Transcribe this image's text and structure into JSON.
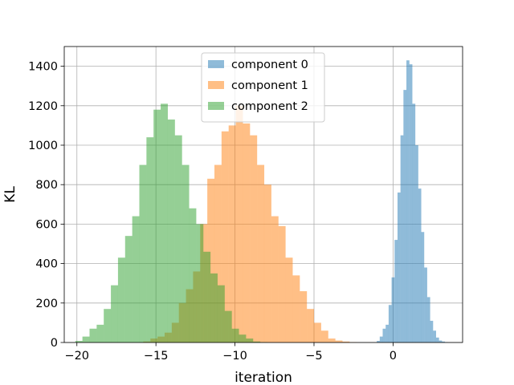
{
  "chart_data": {
    "type": "bar",
    "subtype": "histogram",
    "title": "",
    "xlabel": "iteration",
    "ylabel": "KL",
    "xlim": [
      -20.8,
      4.4
    ],
    "ylim": [
      0,
      1500
    ],
    "xticks": [
      -20,
      -15,
      -10,
      -5,
      0
    ],
    "yticks": [
      0,
      200,
      400,
      600,
      800,
      1000,
      1200,
      1400
    ],
    "grid": true,
    "legend_position": "upper center",
    "series": [
      {
        "name": "component 0",
        "color": "#1f77b4",
        "alpha": 0.5,
        "bin_start": -1.03,
        "bin_width": 0.1875,
        "values": [
          8,
          30,
          70,
          90,
          190,
          330,
          520,
          760,
          1050,
          1280,
          1430,
          1410,
          1210,
          1000,
          780,
          560,
          380,
          230,
          110,
          60,
          25,
          10,
          5,
          2
        ]
      },
      {
        "name": "component 1",
        "color": "#ff7f0e",
        "alpha": 0.5,
        "bin_start": -15.8,
        "bin_width": 0.45,
        "values": [
          5,
          20,
          30,
          50,
          100,
          200,
          270,
          360,
          600,
          830,
          900,
          1070,
          1100,
          1200,
          1110,
          1050,
          900,
          800,
          640,
          590,
          430,
          340,
          260,
          170,
          100,
          60,
          20,
          10,
          5,
          2
        ]
      },
      {
        "name": "component 2",
        "color": "#2ca02c",
        "alpha": 0.5,
        "bin_start": -20.1,
        "bin_width": 0.45,
        "values": [
          8,
          30,
          70,
          90,
          170,
          290,
          430,
          540,
          640,
          900,
          1040,
          1180,
          1210,
          1130,
          1050,
          900,
          680,
          600,
          460,
          350,
          290,
          160,
          70,
          40,
          20,
          5,
          2
        ]
      }
    ]
  }
}
